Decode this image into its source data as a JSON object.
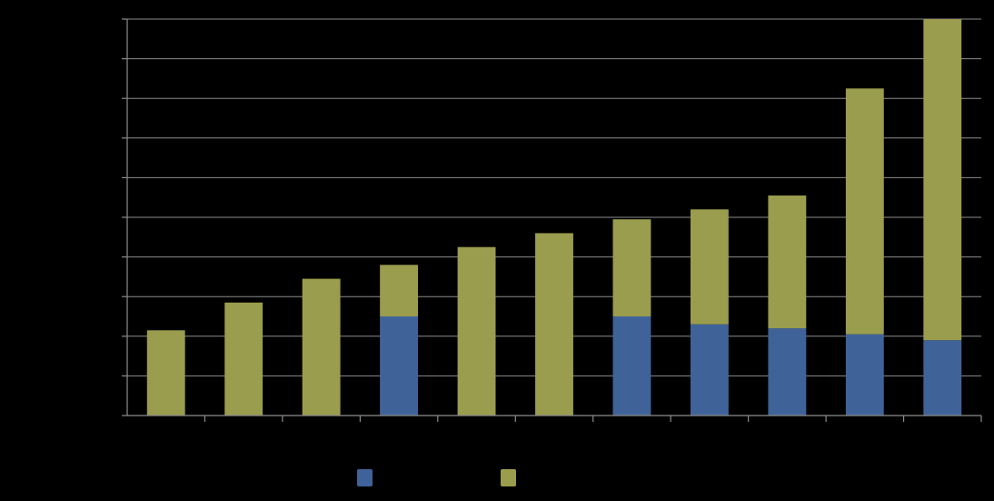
{
  "chart_data": {
    "type": "bar",
    "stacked": true,
    "categories": [
      "",
      "",
      "",
      "",
      "",
      "",
      "",
      "",
      "",
      "",
      ""
    ],
    "series": [
      {
        "color": "#3f6399",
        "values": [
          0,
          0,
          0,
          2.5,
          0,
          0,
          2.5,
          2.3,
          2.2,
          2.05,
          1.9
        ]
      },
      {
        "color": "#9a9c4e",
        "values": [
          2.15,
          2.85,
          3.45,
          1.3,
          4.25,
          4.6,
          2.45,
          2.9,
          3.35,
          6.2,
          8.1
        ]
      }
    ],
    "ylim": [
      0,
      10
    ],
    "grid": true,
    "legend": "bottom",
    "title": "",
    "xlabel": "",
    "ylabel": ""
  }
}
